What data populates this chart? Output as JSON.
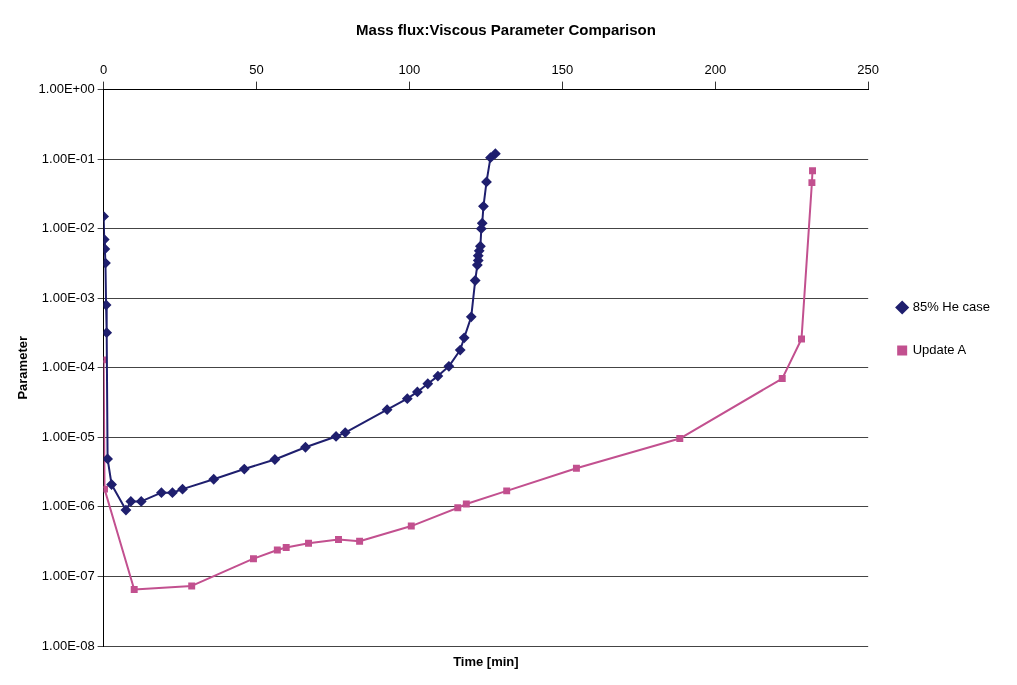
{
  "chart_data": {
    "type": "line",
    "title": "Mass flux:Viscous Parameter Comparison",
    "xlabel": "Time [min]",
    "ylabel": "Parameter",
    "log": "y",
    "grid": "y",
    "legend": "right",
    "xlim": [
      0,
      250
    ],
    "xticks": [
      0,
      50,
      100,
      150,
      200,
      250
    ],
    "ylim": [
      1e-08,
      1
    ],
    "yticks": [
      {
        "value": 1e-08,
        "label": "1.00E-08"
      },
      {
        "value": 1e-07,
        "label": "1.00E-07"
      },
      {
        "value": 1e-06,
        "label": "1.00E-06"
      },
      {
        "value": 1e-05,
        "label": "1.00E-05"
      },
      {
        "value": 0.0001,
        "label": "1.00E-04"
      },
      {
        "value": 0.001,
        "label": "1.00E-03"
      },
      {
        "value": 0.01,
        "label": "1.00E-02"
      },
      {
        "value": 0.1,
        "label": "1.00E-01"
      },
      {
        "value": 1,
        "label": "1.00E+00"
      }
    ],
    "series": [
      {
        "name": "85% He case",
        "color": "#1f1f6e",
        "marker": "diamond",
        "x": [
          0,
          0.2,
          0.4,
          0.6,
          0.8,
          1,
          1.3,
          2.6,
          7.3,
          8.9,
          12.3,
          18.9,
          22.5,
          25.8,
          36,
          46,
          56,
          66,
          76,
          79,
          92.7,
          99.3,
          102.6,
          106,
          109.3,
          112.9,
          116.6,
          117.9,
          120.2,
          121.5,
          122.2,
          122.5,
          122.5,
          122.8,
          123.2,
          123.5,
          123.8,
          124.2,
          125.2,
          126.5,
          128.1
        ],
        "values": [
          0.015,
          0.007,
          0.0051,
          0.0032,
          0.0008,
          0.00032,
          4.9e-06,
          2.1e-06,
          9e-07,
          1.2e-06,
          1.2e-06,
          1.6e-06,
          1.6e-06,
          1.8e-06,
          2.5e-06,
          3.5e-06,
          4.8e-06,
          7.2e-06,
          1.03e-05,
          1.17e-05,
          2.5e-05,
          3.6e-05,
          4.5e-05,
          5.9e-05,
          7.6e-05,
          0.000105,
          0.00018,
          0.00027,
          0.00054,
          0.0018,
          0.003,
          0.0035,
          0.0041,
          0.0048,
          0.0056,
          0.01,
          0.012,
          0.021,
          0.047,
          0.105,
          0.12
        ]
      },
      {
        "name": "Update A",
        "color": "#c2508f",
        "marker": "square",
        "x": [
          0,
          0.3,
          10,
          28.8,
          49,
          56.8,
          59.7,
          67,
          76.8,
          83.7,
          100.6,
          115.8,
          118.6,
          131.8,
          154.6,
          188.4,
          221.9,
          228.2,
          231.6,
          231.8
        ],
        "values": [
          0.00013,
          1.8e-06,
          6.5e-08,
          7.3e-08,
          1.8e-07,
          2.4e-07,
          2.6e-07,
          3e-07,
          3.4e-07,
          3.2e-07,
          5.3e-07,
          9.7e-07,
          1.1e-06,
          1.7e-06,
          3.6e-06,
          9.6e-06,
          7e-05,
          0.00026,
          0.046,
          0.068
        ]
      }
    ]
  }
}
